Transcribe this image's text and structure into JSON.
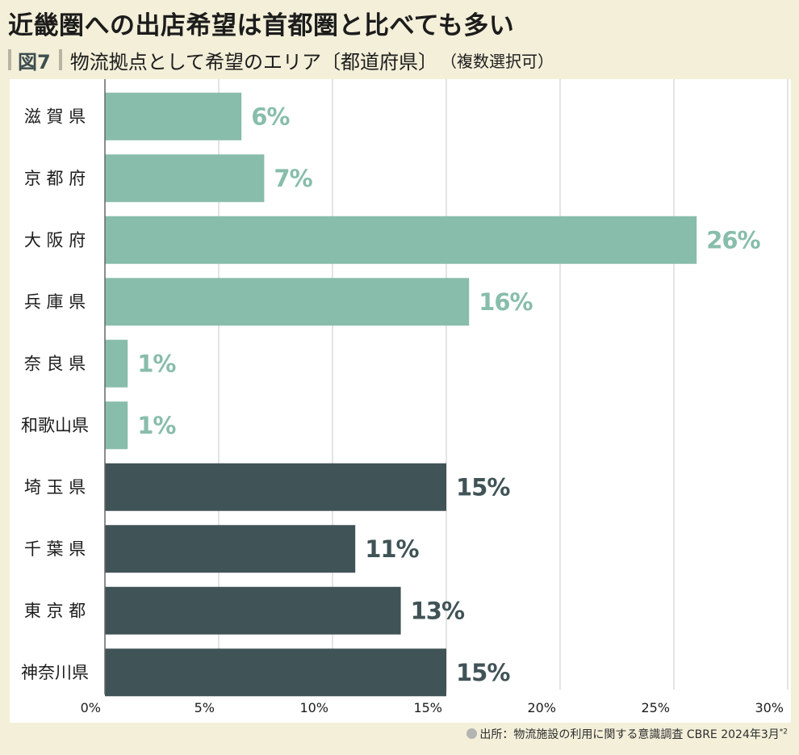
{
  "title": "近畿圏への出店希望は首都圏と比べても多い",
  "figure_label": "図7",
  "subtitle": "物流拠点として希望のエリア〔都道府県〕",
  "subtitle_note": "（複数選択可）",
  "source": "出所：物流施設の利用に関する意識調査 CBRE 2024年3月",
  "source_note": "*2",
  "colors": {
    "kinki": "#88bdab",
    "shutoken": "#405356",
    "background": "#f3efd9",
    "grid": "#c9c9c9",
    "axis": "#666666"
  },
  "chart_data": {
    "type": "bar",
    "orientation": "horizontal",
    "categories": [
      "滋 賀 県",
      "京 都 府",
      "大 阪 府",
      "兵 庫 県",
      "奈 良 県",
      "和歌山県",
      "埼 玉 県",
      "千 葉 県",
      "東 京 都",
      "神奈川県"
    ],
    "values": [
      6,
      7,
      26,
      16,
      1,
      1,
      15,
      11,
      13,
      15
    ],
    "value_labels": [
      "6%",
      "7%",
      "26%",
      "16%",
      "1%",
      "1%",
      "15%",
      "11%",
      "13%",
      "15%"
    ],
    "groups": [
      "kinki",
      "kinki",
      "kinki",
      "kinki",
      "kinki",
      "kinki",
      "shutoken",
      "shutoken",
      "shutoken",
      "shutoken"
    ],
    "xlim": [
      0,
      30
    ],
    "xticks": [
      0,
      5,
      10,
      15,
      20,
      25,
      30
    ],
    "xtick_labels": [
      "0%",
      "5%",
      "10%",
      "15%",
      "20%",
      "25%",
      "30%"
    ],
    "grid": true,
    "title": "",
    "xlabel": "",
    "ylabel": ""
  }
}
